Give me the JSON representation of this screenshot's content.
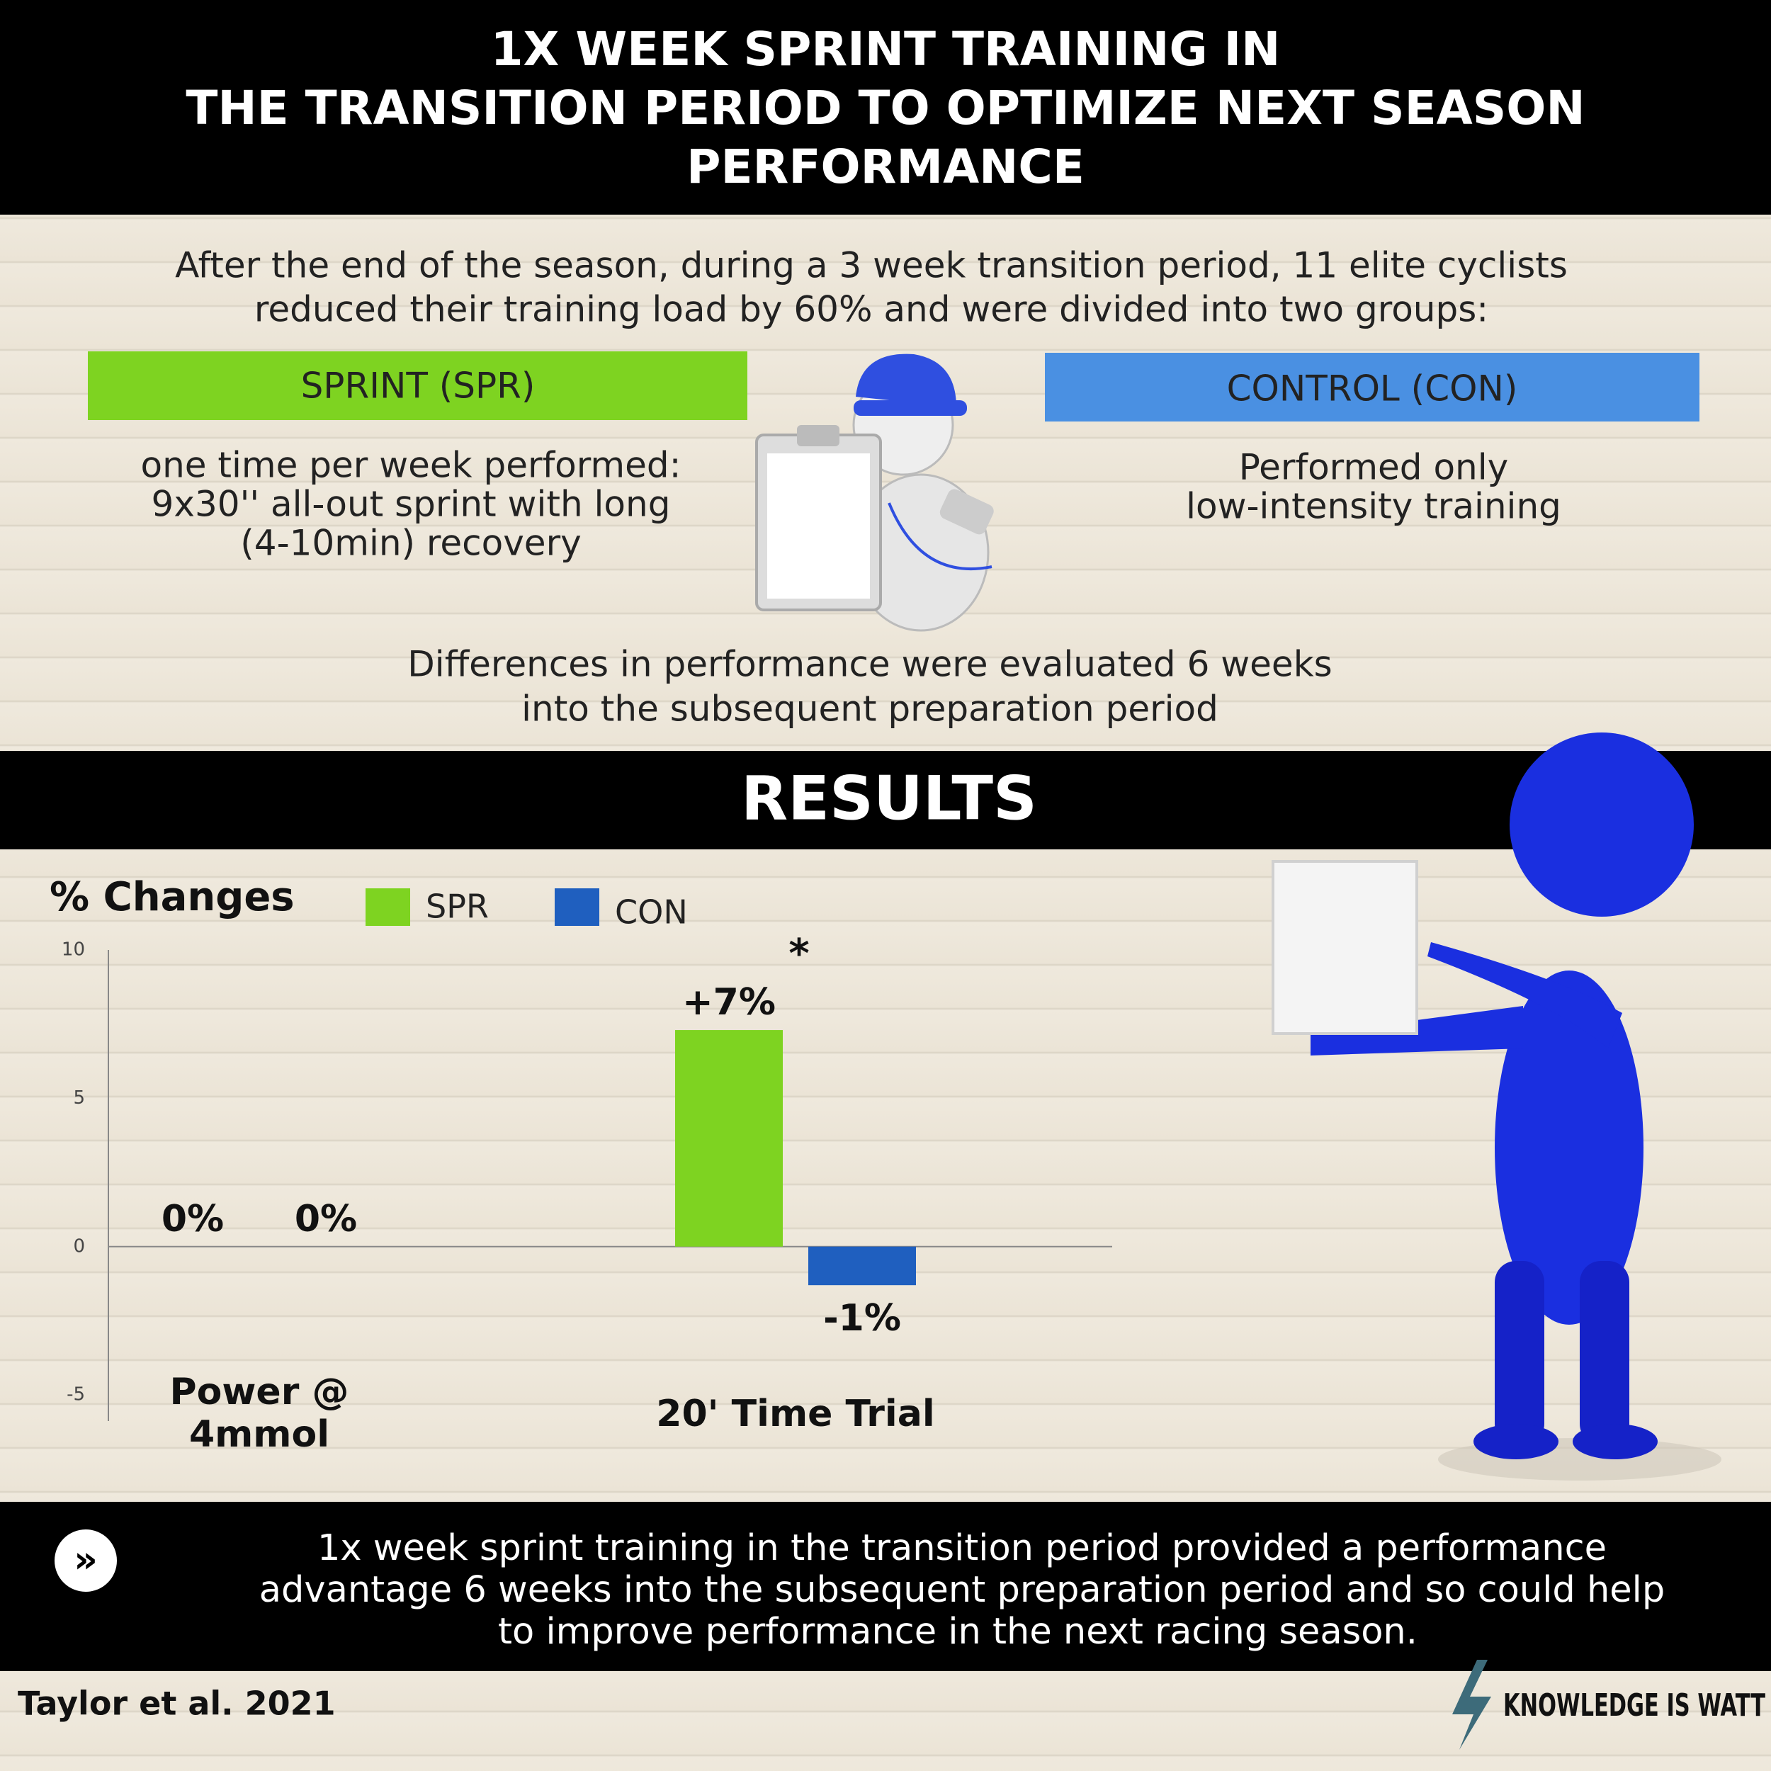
{
  "header": {
    "title_lines": [
      "1X WEEK SPRINT TRAINING IN",
      "THE TRANSITION PERIOD TO OPTIMIZE NEXT SEASON",
      "PERFORMANCE"
    ]
  },
  "intro": {
    "lines": [
      "After the end of the season,  during a 3 week transition period, 11 elite cyclists",
      "reduced their training load by 60% and were divided into two groups:"
    ]
  },
  "groups": [
    {
      "label": "SPRINT (SPR)",
      "color": "#7ed321",
      "description_lines": [
        "one time per week performed:",
        "9x30'' all-out sprint with long",
        "(4-10min) recovery"
      ]
    },
    {
      "label": "CONTROL (CON)",
      "color": "#4a90e2",
      "description_lines": [
        "Performed only",
        "low-intensity training"
      ]
    }
  ],
  "evaluation": {
    "lines": [
      "Differences in performance were evaluated 6 weeks",
      "into the subsequent preparation period"
    ]
  },
  "results_title": "RESULTS",
  "chart_data": {
    "type": "bar",
    "y_label": "% Changes",
    "categories": [
      "Power @ 4mmol",
      "20' Time Trial"
    ],
    "series": [
      {
        "name": "SPR",
        "color": "#7ed321",
        "values": [
          0,
          7.3
        ],
        "value_labels": [
          "0%",
          "+7%"
        ]
      },
      {
        "name": "CON",
        "color": "#1f5fbf",
        "values": [
          0,
          -1.3
        ],
        "value_labels": [
          "0%",
          "-1%"
        ]
      }
    ],
    "ylim": [
      -6,
      10
    ],
    "yticks": [
      -5,
      0,
      5,
      10
    ],
    "annotation": "*"
  },
  "conclusion": {
    "lines": [
      "1x week sprint training in the transition period provided a performance",
      "advantage 6 weeks into the subsequent preparation period and so could help",
      "to improve performance in the next racing season."
    ]
  },
  "footer": {
    "citation": "Taylor et al. 2021",
    "brand": "KNOWLEDGE IS WATT"
  }
}
